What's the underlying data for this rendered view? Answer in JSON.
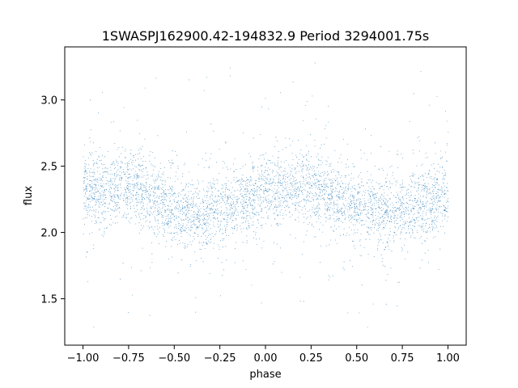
{
  "chart_data": {
    "type": "scatter",
    "title": "1SWASPJ162900.42-194832.9 Period 3294001.75s",
    "xlabel": "phase",
    "ylabel": "flux",
    "xlim": [
      -1.1,
      1.1
    ],
    "ylim": [
      1.15,
      3.4
    ],
    "xticks": [
      -1.0,
      -0.75,
      -0.5,
      -0.25,
      0.0,
      0.25,
      0.5,
      0.75,
      1.0
    ],
    "xtick_labels": [
      "−1.00",
      "−0.75",
      "−0.50",
      "−0.25",
      "0.00",
      "0.25",
      "0.50",
      "0.75",
      "1.00"
    ],
    "yticks": [
      1.5,
      2.0,
      2.5,
      3.0
    ],
    "ytick_labels": [
      "1.5",
      "2.0",
      "2.5",
      "3.0"
    ],
    "marker_color": "#1f77b4",
    "grid": false,
    "legend": "none",
    "series": [
      {
        "x_range": [
          -1.0,
          1.0
        ],
        "points": 14000,
        "profile_phase": [
          0.0,
          0.1,
          0.2,
          0.3,
          0.4,
          0.5,
          0.6,
          0.7,
          0.8,
          0.9,
          1.0
        ],
        "profile_flux": [
          2.3,
          2.32,
          2.36,
          2.34,
          2.25,
          2.18,
          2.14,
          2.16,
          2.2,
          2.24,
          2.3
        ],
        "core_spread": 0.13,
        "outlier_range": [
          1.25,
          3.3
        ]
      }
    ]
  }
}
